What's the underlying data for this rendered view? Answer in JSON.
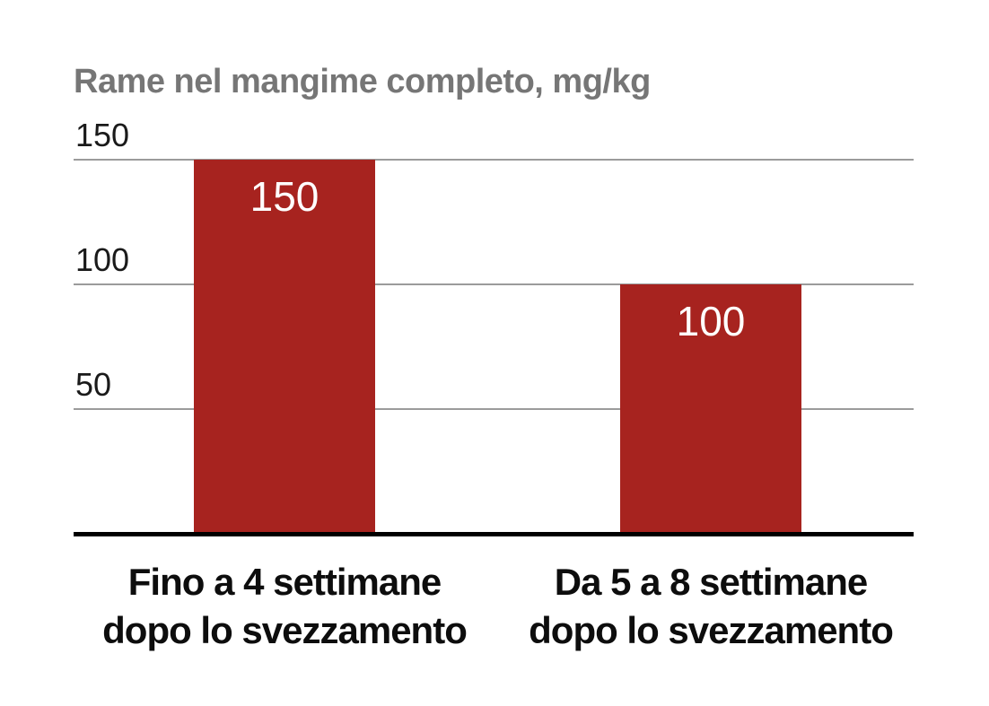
{
  "chart_data": {
    "type": "bar",
    "title": "Rame nel mangime completo, mg/kg",
    "categories": [
      "Fino a 4 settimane\ndopo lo svezzamento",
      "Da 5 a 8 settimane\ndopo lo svezzamento"
    ],
    "values": [
      150,
      100
    ],
    "data_labels": [
      "150",
      "100"
    ],
    "yticks": [
      150,
      100,
      50
    ],
    "ylim": [
      0,
      150
    ],
    "xlabel": "",
    "ylabel": "",
    "grid": true,
    "legend": false,
    "colors": {
      "bar": "#A7231F",
      "bar_value_label": "#FFFFFF",
      "title": "#767676",
      "gridline": "#9B9B9B",
      "axis_line": "#000000",
      "tick_label": "#1A1A1A",
      "category_label": "#0D0D0D"
    }
  }
}
